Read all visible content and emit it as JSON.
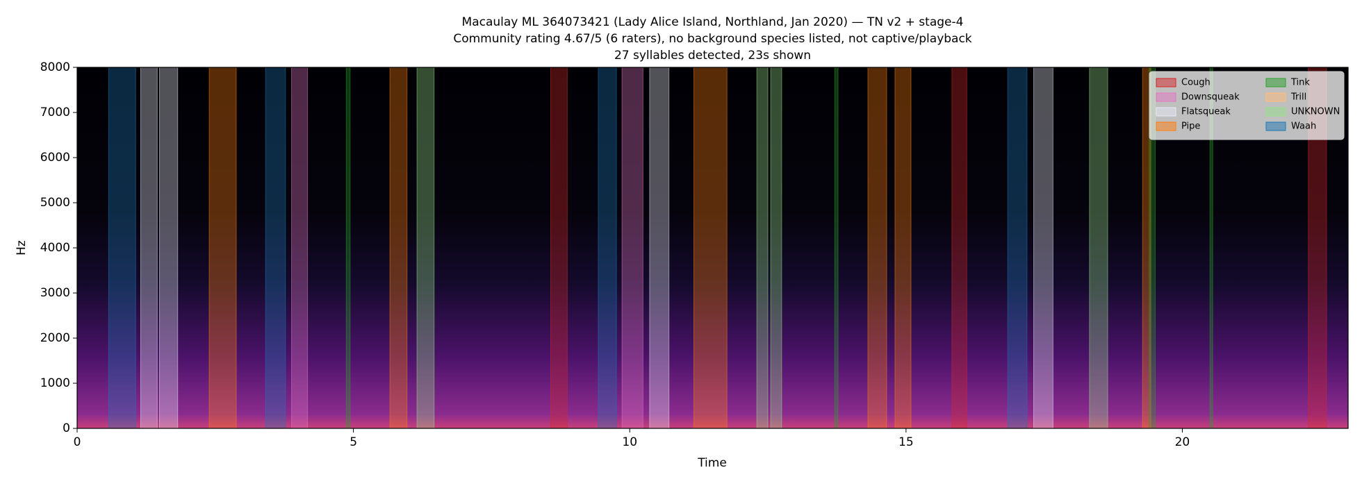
{
  "chart_data": {
    "type": "spectrogram",
    "title": [
      "Macaulay ML 364073421 (Lady Alice Island, Northland, Jan 2020) — TN v2 + stage-4",
      "Community rating 4.67/5 (6 raters), no background species listed, not captive/playback",
      "27 syllables detected, 23s shown"
    ],
    "xlabel": "Time",
    "ylabel": "Hz",
    "xlim": [
      0,
      23
    ],
    "ylim": [
      0,
      8000
    ],
    "xticks": [
      0,
      5,
      10,
      15,
      20
    ],
    "yticks": [
      0,
      1000,
      2000,
      3000,
      4000,
      5000,
      6000,
      7000,
      8000
    ],
    "legend": "upper right",
    "series": [
      {
        "name": "Cough",
        "color": "#d62728",
        "intervals": [
          [
            8.57,
            8.87
          ],
          [
            15.83,
            16.1
          ],
          [
            22.28,
            22.61
          ]
        ]
      },
      {
        "name": "Downsqueak",
        "color": "#e377c2",
        "intervals": [
          [
            3.88,
            4.17
          ],
          [
            9.86,
            10.24
          ]
        ]
      },
      {
        "name": "Flatsqueak",
        "color": "#e8e8f4",
        "intervals": [
          [
            1.15,
            1.45
          ],
          [
            1.49,
            1.82
          ],
          [
            10.36,
            10.71
          ],
          [
            17.31,
            17.66
          ]
        ]
      },
      {
        "name": "Pipe",
        "color": "#ff7f0e",
        "intervals": [
          [
            2.39,
            2.88
          ],
          [
            5.66,
            5.97
          ],
          [
            11.16,
            11.76
          ],
          [
            14.31,
            14.65
          ],
          [
            14.8,
            15.09
          ],
          [
            19.28,
            19.43
          ]
        ]
      },
      {
        "name": "Tink",
        "color": "#2ca02c",
        "intervals": [
          [
            4.87,
            4.94
          ],
          [
            13.71,
            13.77
          ],
          [
            19.4,
            19.51
          ],
          [
            20.5,
            20.55
          ]
        ]
      },
      {
        "name": "Trill",
        "color": "#ffbb78",
        "intervals": []
      },
      {
        "name": "UNKNOWN",
        "color": "#98df8a",
        "intervals": [
          [
            6.15,
            6.46
          ],
          [
            12.3,
            12.5
          ],
          [
            12.55,
            12.75
          ],
          [
            18.32,
            18.65
          ]
        ]
      },
      {
        "name": "Waah",
        "color": "#1f77b4",
        "intervals": [
          [
            0.57,
            1.06
          ],
          [
            3.41,
            3.77
          ],
          [
            9.43,
            9.76
          ],
          [
            16.84,
            17.19
          ]
        ]
      }
    ]
  }
}
